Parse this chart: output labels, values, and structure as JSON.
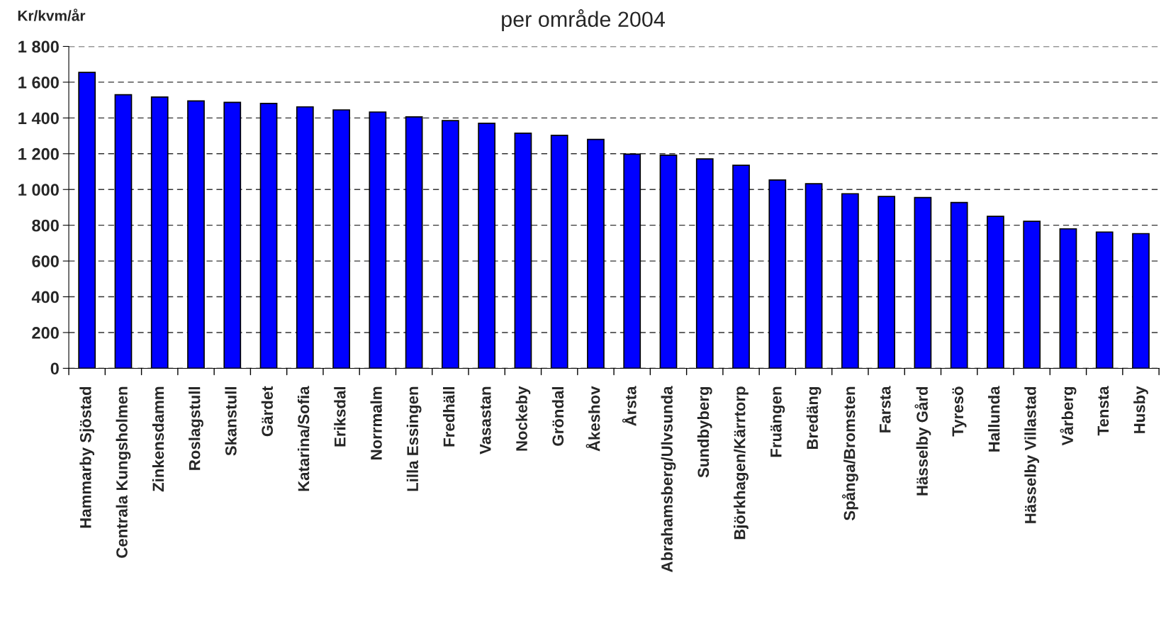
{
  "chart_data": {
    "type": "bar",
    "title": "per område 2004",
    "ylabel": "Kr/kvm/år",
    "categories": [
      "Hammarby Sjöstad",
      "Centrala Kungsholmen",
      "Zinkensdamm",
      "Roslagstull",
      "Skanstull",
      "Gärdet",
      "Katarina/Sofia",
      "Eriksdal",
      "Norrmalm",
      "Lilla Essingen",
      "Fredhäll",
      "Vasastan",
      "Nockeby",
      "Gröndal",
      "Åkeshov",
      "Årsta",
      "Abrahamsberg/Ulvsunda",
      "Sundbyberg",
      "Björkhagen/Kärrtorp",
      "Fruängen",
      "Bredäng",
      "Spånga/Bromsten",
      "Farsta",
      "Hässelby Gård",
      "Tyresö",
      "Hallunda",
      "Hässelby Villastad",
      "Vårberg",
      "Tensta",
      "Husby"
    ],
    "values": [
      1655,
      1530,
      1517,
      1495,
      1487,
      1481,
      1462,
      1445,
      1433,
      1406,
      1385,
      1370,
      1315,
      1303,
      1280,
      1198,
      1192,
      1171,
      1135,
      1053,
      1032,
      976,
      961,
      955,
      927,
      850,
      822,
      780,
      762,
      753
    ],
    "color": "#0000ff",
    "ylim": [
      0,
      1800
    ],
    "yticks": [
      0,
      200,
      400,
      600,
      800,
      {
        "value": 1000,
        "label": "1 000"
      },
      {
        "value": 1200,
        "label": "1 200"
      },
      {
        "value": 1400,
        "label": "1 400"
      },
      {
        "value": 1600,
        "label": "1 600"
      },
      {
        "value": 1800,
        "label": "1 800"
      }
    ],
    "grid": "y"
  }
}
